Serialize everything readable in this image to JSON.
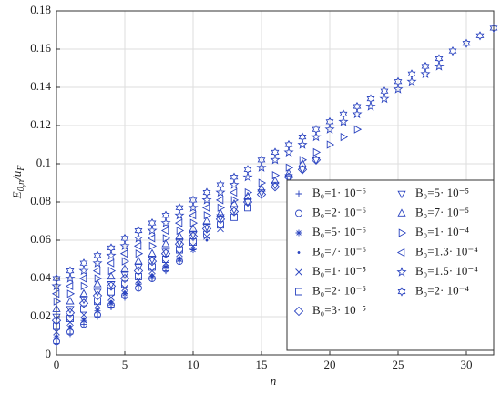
{
  "chart_data": {
    "type": "scatter",
    "xlabel": "n",
    "ylabel": [
      "E",
      "0,n",
      "/u",
      "F"
    ],
    "xlim": [
      0,
      32
    ],
    "ylim": [
      0,
      0.18
    ],
    "xticks": [
      0,
      5,
      10,
      15,
      20,
      25,
      30
    ],
    "yticks": [
      0,
      0.02,
      0.04,
      0.06,
      0.08,
      0.1,
      0.12,
      0.14,
      0.16,
      0.18
    ],
    "grid": true,
    "legend_position": "lower right",
    "series": [
      {
        "name": "B₀=1· 10⁻⁶",
        "marker": "plus",
        "color": "#2b44c0",
        "x": [
          0,
          1,
          2,
          3,
          4,
          5,
          6,
          7,
          8,
          9
        ],
        "values": [
          0.006,
          0.011,
          0.016,
          0.02,
          0.025,
          0.03,
          0.035,
          0.04,
          0.044,
          0.049
        ]
      },
      {
        "name": "B₀=2· 10⁻⁶",
        "marker": "circle",
        "color": "#2b44c0",
        "x": [
          0,
          1,
          2,
          3,
          4,
          5,
          6,
          7,
          8,
          9
        ],
        "values": [
          0.007,
          0.012,
          0.016,
          0.021,
          0.026,
          0.031,
          0.035,
          0.04,
          0.045,
          0.049
        ]
      },
      {
        "name": "B₀=5· 10⁻⁶",
        "marker": "asterisk",
        "color": "#2b44c0",
        "x": [
          0,
          1,
          2,
          3,
          4,
          5,
          6,
          7,
          8,
          9,
          10
        ],
        "values": [
          0.009,
          0.014,
          0.018,
          0.023,
          0.027,
          0.032,
          0.037,
          0.041,
          0.046,
          0.05,
          0.055
        ]
      },
      {
        "name": "B₀=7· 10⁻⁶",
        "marker": "dot",
        "color": "#2b44c0",
        "x": [
          0,
          1,
          2,
          3,
          4,
          5,
          6,
          7,
          8,
          9,
          10,
          11
        ],
        "values": [
          0.01,
          0.015,
          0.019,
          0.024,
          0.028,
          0.033,
          0.037,
          0.042,
          0.046,
          0.051,
          0.055,
          0.06
        ]
      },
      {
        "name": "B₀=1· 10⁻⁵",
        "marker": "x",
        "color": "#2b44c0",
        "x": [
          0,
          1,
          2,
          3,
          4,
          5,
          6,
          7,
          8,
          9,
          10,
          11,
          12
        ],
        "values": [
          0.012,
          0.017,
          0.021,
          0.026,
          0.03,
          0.035,
          0.039,
          0.044,
          0.048,
          0.053,
          0.057,
          0.062,
          0.066
        ]
      },
      {
        "name": "B₀=2· 10⁻⁵",
        "marker": "square",
        "color": "#2b44c0",
        "x": [
          0,
          1,
          2,
          3,
          4,
          5,
          6,
          7,
          8,
          9,
          10,
          11,
          12,
          13,
          14
        ],
        "values": [
          0.015,
          0.019,
          0.024,
          0.028,
          0.033,
          0.037,
          0.041,
          0.046,
          0.05,
          0.055,
          0.059,
          0.063,
          0.068,
          0.072,
          0.077
        ]
      },
      {
        "name": "B₀=3· 10⁻⁵",
        "marker": "diamond",
        "color": "#2b44c0",
        "x": [
          0,
          1,
          2,
          3,
          4,
          5,
          6,
          7,
          8,
          9,
          10,
          11,
          12,
          13,
          14,
          15,
          16,
          17,
          18,
          19
        ],
        "values": [
          0.018,
          0.022,
          0.027,
          0.031,
          0.036,
          0.04,
          0.044,
          0.049,
          0.053,
          0.058,
          0.062,
          0.066,
          0.071,
          0.075,
          0.08,
          0.084,
          0.088,
          0.093,
          0.097,
          0.102
        ]
      },
      {
        "name": "B₀=5· 10⁻⁵",
        "marker": "triangle-down",
        "color": "#2b44c0",
        "x": [
          0,
          1,
          2,
          3,
          4,
          5,
          6,
          7,
          8,
          9,
          10,
          11,
          12,
          13,
          14,
          15,
          16,
          17,
          18,
          19
        ],
        "values": [
          0.02,
          0.024,
          0.029,
          0.033,
          0.037,
          0.042,
          0.046,
          0.05,
          0.054,
          0.059,
          0.063,
          0.067,
          0.072,
          0.076,
          0.08,
          0.085,
          0.089,
          0.093,
          0.097,
          0.102
        ]
      },
      {
        "name": "B₀=7· 10⁻⁵",
        "marker": "triangle-up",
        "color": "#2b44c0",
        "x": [
          0,
          1,
          2,
          3,
          4,
          5,
          6,
          7,
          8,
          9,
          10,
          11,
          12,
          13,
          14,
          15,
          16,
          17,
          18
        ],
        "values": [
          0.024,
          0.028,
          0.032,
          0.037,
          0.041,
          0.045,
          0.049,
          0.053,
          0.058,
          0.062,
          0.066,
          0.07,
          0.074,
          0.079,
          0.083,
          0.087,
          0.091,
          0.095,
          0.1
        ]
      },
      {
        "name": "B₀=1· 10⁻⁴",
        "marker": "triangle-right",
        "color": "#2b44c0",
        "x": [
          0,
          1,
          2,
          3,
          4,
          5,
          6,
          7,
          8,
          9,
          10,
          11,
          12,
          13,
          14,
          15,
          16,
          17,
          18,
          19,
          20,
          21,
          22
        ],
        "values": [
          0.028,
          0.032,
          0.036,
          0.04,
          0.044,
          0.049,
          0.053,
          0.057,
          0.061,
          0.065,
          0.069,
          0.073,
          0.077,
          0.081,
          0.085,
          0.09,
          0.094,
          0.098,
          0.102,
          0.106,
          0.11,
          0.114,
          0.118
        ]
      },
      {
        "name": "B₀=1.3· 10⁻⁴",
        "marker": "triangle-left",
        "color": "#2b44c0",
        "x": [
          0,
          1,
          2,
          3,
          4,
          5,
          6,
          7,
          8,
          9,
          10,
          11,
          12,
          13
        ],
        "values": [
          0.032,
          0.036,
          0.04,
          0.044,
          0.048,
          0.053,
          0.057,
          0.061,
          0.065,
          0.069,
          0.073,
          0.077,
          0.081,
          0.085
        ]
      },
      {
        "name": "B₀=1.5· 10⁻⁴",
        "marker": "star",
        "color": "#2b44c0",
        "x": [
          0,
          1,
          2,
          3,
          4,
          5,
          6,
          7,
          8,
          9,
          10,
          11,
          12,
          13,
          14,
          15,
          16,
          17,
          18,
          19,
          20,
          21,
          22,
          23,
          24,
          25,
          26,
          27,
          28
        ],
        "values": [
          0.036,
          0.04,
          0.044,
          0.048,
          0.052,
          0.057,
          0.061,
          0.065,
          0.069,
          0.073,
          0.077,
          0.081,
          0.085,
          0.089,
          0.093,
          0.098,
          0.102,
          0.106,
          0.11,
          0.114,
          0.118,
          0.122,
          0.126,
          0.13,
          0.134,
          0.139,
          0.143,
          0.147,
          0.151
        ]
      },
      {
        "name": "B₀=2· 10⁻⁴",
        "marker": "hexagram",
        "color": "#2b44c0",
        "x": [
          0,
          1,
          2,
          3,
          4,
          5,
          6,
          7,
          8,
          9,
          10,
          11,
          12,
          13,
          14,
          15,
          16,
          17,
          18,
          19,
          20,
          21,
          22,
          23,
          24,
          25,
          26,
          27,
          28,
          29,
          30,
          31,
          32
        ],
        "values": [
          0.04,
          0.044,
          0.048,
          0.052,
          0.056,
          0.061,
          0.065,
          0.069,
          0.073,
          0.077,
          0.081,
          0.085,
          0.089,
          0.093,
          0.097,
          0.102,
          0.106,
          0.11,
          0.114,
          0.118,
          0.122,
          0.126,
          0.13,
          0.134,
          0.138,
          0.143,
          0.147,
          0.151,
          0.155,
          0.159,
          0.163,
          0.167,
          0.171
        ]
      }
    ]
  }
}
